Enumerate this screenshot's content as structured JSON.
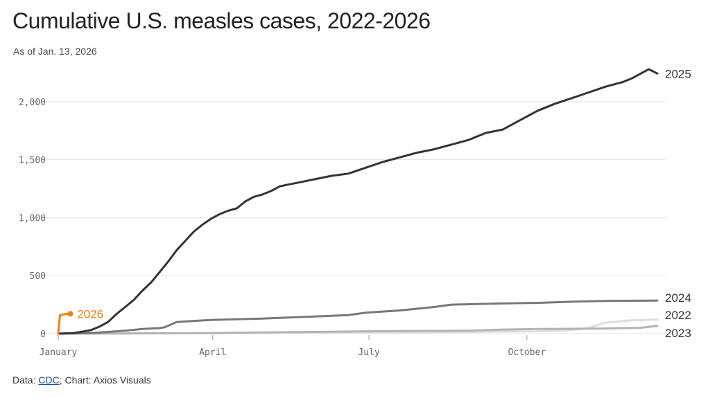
{
  "chart_data": {
    "type": "line",
    "title": "Cumulative U.S. measles cases, 2022-2026",
    "subtitle": "As of Jan. 13, 2026",
    "x_axis": {
      "ticks": [
        "January",
        "April",
        "July",
        "October"
      ],
      "day_of_year": [
        1,
        91,
        182,
        274
      ],
      "range": [
        1,
        350
      ]
    },
    "y_axis": {
      "ticks": [
        0,
        500,
        1000,
        1500,
        2000
      ],
      "tick_labels": [
        "0",
        "500",
        "1,000",
        "1,500",
        "2,000"
      ],
      "range": [
        0,
        2250
      ]
    },
    "grid": true,
    "series": [
      {
        "name": "2022",
        "color": "#dddddd",
        "label_y": 121,
        "x": [
          1,
          60,
          120,
          180,
          240,
          280,
          300,
          310,
          320,
          335,
          350
        ],
        "values": [
          0,
          2,
          5,
          10,
          15,
          20,
          30,
          50,
          95,
          115,
          121
        ]
      },
      {
        "name": "2023",
        "color": "#b3b3b3",
        "label_y": 62,
        "x": [
          1,
          40,
          60,
          90,
          120,
          150,
          180,
          200,
          240,
          260,
          280,
          300,
          320,
          340,
          350
        ],
        "values": [
          0,
          2,
          3,
          5,
          10,
          15,
          20,
          22,
          25,
          35,
          40,
          42,
          44,
          50,
          66
        ]
      },
      {
        "name": "2024",
        "color": "#777777",
        "label_y": 284,
        "x": [
          1,
          20,
          30,
          40,
          50,
          60,
          63,
          70,
          80,
          90,
          120,
          150,
          170,
          180,
          200,
          220,
          230,
          260,
          280,
          300,
          320,
          350
        ],
        "values": [
          0,
          5,
          15,
          25,
          40,
          48,
          55,
          100,
          110,
          118,
          130,
          148,
          160,
          180,
          200,
          230,
          250,
          260,
          265,
          275,
          282,
          285
        ]
      },
      {
        "name": "2025",
        "color": "#333333",
        "label_y": 2242,
        "x": [
          1,
          10,
          20,
          25,
          30,
          35,
          40,
          45,
          50,
          55,
          60,
          65,
          70,
          75,
          80,
          85,
          90,
          95,
          100,
          105,
          110,
          115,
          120,
          125,
          130,
          140,
          150,
          160,
          170,
          180,
          190,
          200,
          210,
          220,
          230,
          240,
          250,
          260,
          270,
          280,
          290,
          300,
          310,
          320,
          330,
          335,
          340,
          345,
          350
        ],
        "values": [
          0,
          5,
          30,
          60,
          100,
          170,
          230,
          290,
          370,
          440,
          530,
          620,
          720,
          800,
          880,
          940,
          990,
          1030,
          1060,
          1080,
          1140,
          1180,
          1200,
          1230,
          1270,
          1300,
          1330,
          1360,
          1380,
          1430,
          1480,
          1520,
          1560,
          1590,
          1630,
          1670,
          1730,
          1760,
          1840,
          1920,
          1980,
          2030,
          2080,
          2130,
          2170,
          2200,
          2240,
          2280,
          2243
        ]
      },
      {
        "name": "2026",
        "color": "#f07e18",
        "label_y": 171,
        "end_marker": true,
        "x": [
          1,
          2,
          6,
          8
        ],
        "values": [
          0,
          160,
          170,
          171
        ]
      }
    ]
  },
  "source": {
    "prefix": "Data: ",
    "link_text": "CDC",
    "suffix": "; Chart: Axios Visuals"
  }
}
